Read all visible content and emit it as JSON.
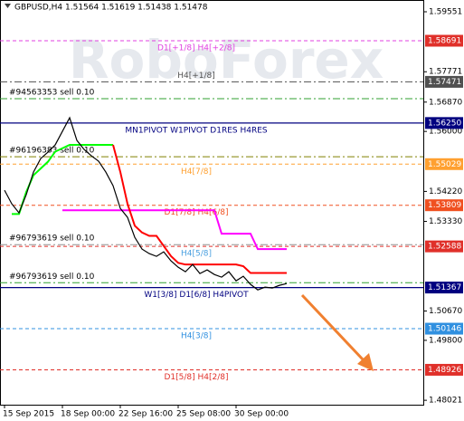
{
  "chart_data": {
    "type": "line",
    "title": "GBPUSD,H4  1.51564 1.51619 1.51438 1.51478",
    "watermark": "RoboForex",
    "categories": [
      "15 Sep 2015",
      null,
      null,
      null,
      null,
      null,
      null,
      null,
      "18 Sep 00:00",
      null,
      null,
      null,
      null,
      null,
      null,
      null,
      "22 Sep 16:00",
      null,
      null,
      null,
      null,
      null,
      null,
      null,
      "25 Sep 08:00",
      null,
      null,
      null,
      null,
      null,
      null,
      null,
      "30 Sep 00:00",
      null,
      null,
      null,
      null,
      null,
      null,
      null
    ],
    "series": [
      {
        "color": "#000000",
        "values": [
          1.54255,
          1.53852,
          1.53583,
          1.54121,
          1.54793,
          1.55196,
          1.55384,
          1.55599,
          1.56003,
          1.56406,
          1.55734,
          1.55465,
          1.55277,
          1.55116,
          1.54793,
          1.5439,
          1.53718,
          1.53449,
          1.52857,
          1.52508,
          1.52374,
          1.52293,
          1.52427,
          1.52159,
          1.5197,
          1.51836,
          1.52051,
          1.51782,
          1.5189,
          1.51755,
          1.51675,
          1.51836,
          1.51567,
          1.51702,
          1.5146,
          1.51298,
          1.51379,
          1.51352,
          1.51433,
          1.51486
        ]
      },
      {
        "color": "#ff00ff",
        "values": [
          null,
          null,
          null,
          null,
          null,
          null,
          null,
          null,
          1.5366,
          1.5366,
          1.5366,
          1.5366,
          1.5366,
          1.5366,
          1.5366,
          1.5366,
          1.5366,
          1.5366,
          1.5366,
          1.5366,
          1.5366,
          1.5366,
          1.5366,
          1.5366,
          1.5366,
          1.5366,
          1.5366,
          1.5366,
          1.5366,
          1.5366,
          1.52965,
          1.52965,
          1.52965,
          1.52965,
          1.52965,
          1.52508,
          1.52508,
          1.52508,
          1.52508,
          1.52508
        ]
      },
      {
        "color": "#00ff00",
        "values": [
          null,
          1.5355,
          1.5355,
          1.542,
          1.547,
          1.549,
          1.551,
          1.554,
          1.555,
          1.556,
          1.556,
          1.556,
          1.556,
          1.556,
          1.556,
          1.556,
          null,
          null,
          null,
          null,
          null,
          null,
          null,
          null,
          null,
          null,
          null,
          null,
          null,
          null,
          null,
          null,
          null,
          null,
          null,
          null,
          null,
          null,
          null,
          null
        ]
      },
      {
        "color": "#ff0000",
        "values": [
          null,
          null,
          null,
          null,
          null,
          null,
          null,
          null,
          null,
          null,
          null,
          null,
          null,
          null,
          null,
          1.556,
          1.548,
          1.5385,
          1.532,
          1.53,
          1.529,
          1.529,
          1.526,
          1.523,
          1.521,
          1.5205,
          1.5205,
          1.5205,
          1.5205,
          1.5205,
          1.5205,
          1.5205,
          1.5205,
          1.52,
          1.518,
          1.518,
          1.518,
          1.518,
          1.518,
          1.518
        ]
      }
    ],
    "ylim": [
      1.4789,
      1.599
    ],
    "yticks": [
      {
        "value": 1.59551,
        "label": "1.59551"
      },
      {
        "value": 1.57771,
        "label": "1.57771"
      },
      {
        "value": 1.5687,
        "label": "1.56870"
      },
      {
        "value": 1.56,
        "label": "1.56000"
      },
      {
        "value": 1.5422,
        "label": "1.54220"
      },
      {
        "value": 1.5333,
        "label": "1.53330"
      },
      {
        "value": 1.5067,
        "label": "1.50670"
      },
      {
        "value": 1.498,
        "label": "1.49800"
      },
      {
        "value": 1.48021,
        "label": "1.48021"
      }
    ],
    "levels": [
      {
        "value": 1.58691,
        "label": "1.58691",
        "text": "D1[+1/8] H4[+2/8]",
        "color": "#e040e0",
        "tag_color": "#e0302a",
        "style": "dash"
      },
      {
        "value": 1.57471,
        "label": "1.57471",
        "text": "H4[+1/8]",
        "color": "#505050",
        "tag_color": "#505050",
        "style": "dashdot"
      },
      {
        "value": 1.5625,
        "label": "1.56250",
        "text": "MN1PIVOT W1PIVOT D1RES H4RES",
        "color": "#000080",
        "tag_color": "#000080",
        "style": "solid"
      },
      {
        "value": 1.55029,
        "label": "1.55029",
        "text": "H4[7/8]",
        "color": "#ffa030",
        "tag_color": "#ffa030",
        "style": "dash"
      },
      {
        "value": 1.53809,
        "label": "1.53809",
        "text": "D1[7/8] H4[6/8]",
        "color": "#f05020",
        "tag_color": "#f05020",
        "style": "dash"
      },
      {
        "value": 1.52588,
        "label": "1.52588",
        "text": "H4[5/8]",
        "color": "#e0302a",
        "tag_color": "#e0302a",
        "text_color": "#4aa0e0",
        "style": "dash"
      },
      {
        "value": 1.51367,
        "label": "1.51367",
        "text": "W1[3/8] D1[6/8] H4PIVOT",
        "color": "#000080",
        "tag_color": "#000080",
        "style": "solid"
      },
      {
        "value": 1.50146,
        "label": "1.50146",
        "text": "H4[3/8]",
        "color": "#3090e0",
        "tag_color": "#3090e0",
        "style": "dash"
      },
      {
        "value": 1.48926,
        "label": "1.48926",
        "text": "D1[5/8] H4[2/8]",
        "color": "#e0302a",
        "tag_color": "#e0302a",
        "style": "dash"
      }
    ],
    "orders": [
      {
        "value": 1.5697,
        "text": "#94563353 sell 0.10",
        "color": "#30a030"
      },
      {
        "value": 1.5525,
        "text": "#96196383 sell 0.10",
        "color": "#808000"
      },
      {
        "value": 1.5264,
        "text": "#96793619 sell 0.10",
        "color": "#909090"
      },
      {
        "value": 1.5151,
        "text": "#96793619 sell 0.10",
        "color": "#30a030"
      }
    ]
  }
}
